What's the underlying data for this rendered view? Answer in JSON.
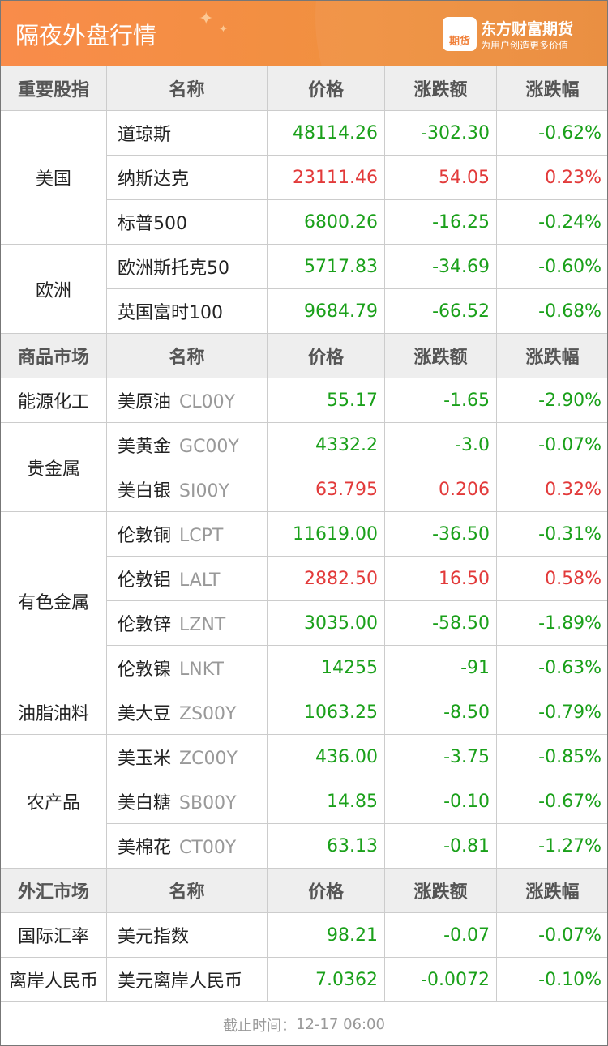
{
  "header": {
    "title": "隔夜外盘行情",
    "logo_text": "期货",
    "brand": "东方财富期货",
    "slogan": "为用户创造更多价值"
  },
  "colors": {
    "up": "#e23a3a",
    "down": "#1aa01a",
    "header": "#f98c4a"
  },
  "sections": [
    {
      "title": "重要股指",
      "columns": [
        "名称",
        "价格",
        "涨跌额",
        "涨跌幅"
      ],
      "groups": [
        {
          "category": "美国",
          "rows": [
            {
              "name": "道琼斯",
              "code": "",
              "price": "48114.26",
              "change": "-302.30",
              "pct": "-0.62%",
              "dir": "down"
            },
            {
              "name": "纳斯达克",
              "code": "",
              "price": "23111.46",
              "change": "54.05",
              "pct": "0.23%",
              "dir": "up"
            },
            {
              "name": "标普500",
              "code": "",
              "price": "6800.26",
              "change": "-16.25",
              "pct": "-0.24%",
              "dir": "down"
            }
          ]
        },
        {
          "category": "欧洲",
          "rows": [
            {
              "name": "欧洲斯托克50",
              "code": "",
              "price": "5717.83",
              "change": "-34.69",
              "pct": "-0.60%",
              "dir": "down"
            },
            {
              "name": "英国富时100",
              "code": "",
              "price": "9684.79",
              "change": "-66.52",
              "pct": "-0.68%",
              "dir": "down"
            }
          ]
        }
      ]
    },
    {
      "title": "商品市场",
      "columns": [
        "名称",
        "价格",
        "涨跌额",
        "涨跌幅"
      ],
      "groups": [
        {
          "category": "能源化工",
          "rows": [
            {
              "name": "美原油",
              "code": "CL00Y",
              "price": "55.17",
              "change": "-1.65",
              "pct": "-2.90%",
              "dir": "down"
            }
          ]
        },
        {
          "category": "贵金属",
          "rows": [
            {
              "name": "美黄金",
              "code": "GC00Y",
              "price": "4332.2",
              "change": "-3.0",
              "pct": "-0.07%",
              "dir": "down"
            },
            {
              "name": "美白银",
              "code": "SI00Y",
              "price": "63.795",
              "change": "0.206",
              "pct": "0.32%",
              "dir": "up"
            }
          ]
        },
        {
          "category": "有色金属",
          "rows": [
            {
              "name": "伦敦铜",
              "code": "LCPT",
              "price": "11619.00",
              "change": "-36.50",
              "pct": "-0.31%",
              "dir": "down"
            },
            {
              "name": "伦敦铝",
              "code": "LALT",
              "price": "2882.50",
              "change": "16.50",
              "pct": "0.58%",
              "dir": "up"
            },
            {
              "name": "伦敦锌",
              "code": "LZNT",
              "price": "3035.00",
              "change": "-58.50",
              "pct": "-1.89%",
              "dir": "down"
            },
            {
              "name": "伦敦镍",
              "code": "LNKT",
              "price": "14255",
              "change": "-91",
              "pct": "-0.63%",
              "dir": "down"
            }
          ]
        },
        {
          "category": "油脂油料",
          "rows": [
            {
              "name": "美大豆",
              "code": "ZS00Y",
              "price": "1063.25",
              "change": "-8.50",
              "pct": "-0.79%",
              "dir": "down"
            }
          ]
        },
        {
          "category": "农产品",
          "rows": [
            {
              "name": "美玉米",
              "code": "ZC00Y",
              "price": "436.00",
              "change": "-3.75",
              "pct": "-0.85%",
              "dir": "down"
            },
            {
              "name": "美白糖",
              "code": "SB00Y",
              "price": "14.85",
              "change": "-0.10",
              "pct": "-0.67%",
              "dir": "down"
            },
            {
              "name": "美棉花",
              "code": "CT00Y",
              "price": "63.13",
              "change": "-0.81",
              "pct": "-1.27%",
              "dir": "down"
            }
          ]
        }
      ]
    },
    {
      "title": "外汇市场",
      "columns": [
        "名称",
        "价格",
        "涨跌额",
        "涨跌幅"
      ],
      "groups": [
        {
          "category": "国际汇率",
          "rows": [
            {
              "name": "美元指数",
              "code": "",
              "price": "98.21",
              "change": "-0.07",
              "pct": "-0.07%",
              "dir": "down"
            }
          ]
        },
        {
          "category": "离岸人民币",
          "rows": [
            {
              "name": "美元离岸人民币",
              "code": "",
              "price": "7.0362",
              "change": "-0.0072",
              "pct": "-0.10%",
              "dir": "down"
            }
          ]
        }
      ]
    }
  ],
  "footer": {
    "cutoff_label": "截止时间：",
    "cutoff_time": "12-17 06:00"
  }
}
